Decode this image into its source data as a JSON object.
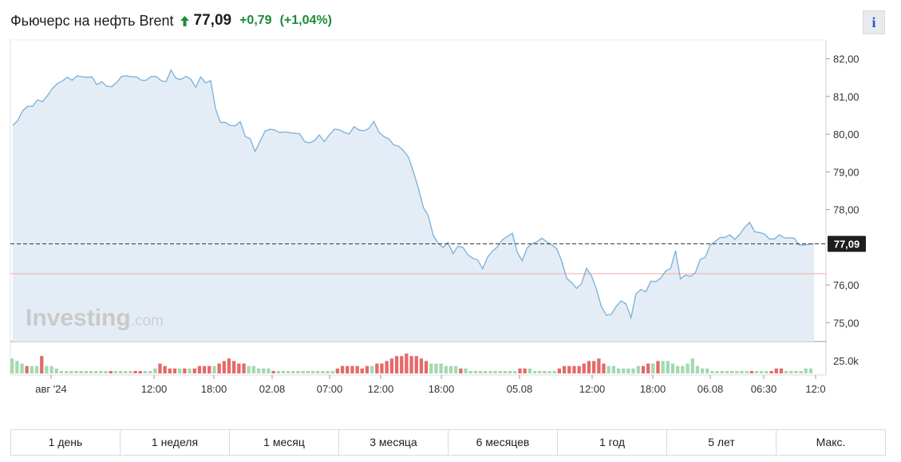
{
  "header": {
    "title": "Фьючерс на нефть Brent",
    "price": "77,09",
    "change": "+0,79",
    "change_pct": "(+1,04%)",
    "up_color": "#198c36",
    "direction_icon": "arrow-up-icon"
  },
  "info_button": {
    "label": "i"
  },
  "chart_data": {
    "type": "area",
    "watermark": {
      "brand": "Investing",
      "suffix": ".com"
    },
    "y_ticks": [
      "82,00",
      "81,00",
      "80,00",
      "79,00",
      "78,00",
      "76,00",
      "75,00"
    ],
    "ylim": [
      74.5,
      82.5
    ],
    "current_price": 77.09,
    "current_label": "77,09",
    "reference_line": 76.3,
    "x_ticks": [
      "авг '24",
      "12:00",
      "18:00",
      "02.08",
      "07:00",
      "12:00",
      "18:00",
      "05.08",
      "12:00",
      "18:00",
      "06.08",
      "06:30",
      "12:0"
    ],
    "grid": true,
    "series": [
      {
        "values": [
          80.23,
          80.36,
          80.62,
          80.74,
          80.74,
          80.91,
          80.86,
          81.02,
          81.21,
          81.34,
          81.41,
          81.51,
          81.43,
          81.55,
          81.52,
          81.51,
          81.52,
          81.31,
          81.39,
          81.27,
          81.26,
          81.37,
          81.53,
          81.55,
          81.52,
          81.52,
          81.43,
          81.43,
          81.53,
          81.53,
          81.42,
          81.39,
          81.7,
          81.48,
          81.45,
          81.53,
          81.46,
          81.24,
          81.52,
          81.36,
          81.42,
          80.67,
          80.31,
          80.31,
          80.23,
          80.22,
          80.33,
          79.94,
          79.88,
          79.54,
          79.81,
          80.08,
          80.13,
          80.11,
          80.04,
          80.06,
          80.04,
          80.02,
          80.01,
          79.8,
          79.77,
          79.83,
          79.98,
          79.8,
          79.98,
          80.13,
          80.12,
          80.05,
          80.0,
          80.2,
          80.11,
          80.09,
          80.15,
          80.34,
          80.06,
          79.94,
          79.88,
          79.72,
          79.68,
          79.56,
          79.39,
          79.0,
          78.57,
          78.06,
          77.84,
          77.32,
          77.11,
          76.99,
          77.13,
          76.83,
          77.03,
          77.0,
          76.8,
          76.71,
          76.66,
          76.43,
          76.74,
          76.9,
          77.01,
          77.2,
          77.29,
          77.37,
          76.87,
          76.64,
          76.98,
          77.1,
          77.15,
          77.24,
          77.14,
          77.06,
          76.96,
          76.63,
          76.18,
          76.06,
          75.91,
          76.04,
          76.44,
          76.25,
          75.89,
          75.43,
          75.2,
          75.22,
          75.43,
          75.58,
          75.5,
          75.13,
          75.77,
          75.88,
          75.82,
          76.1,
          76.09,
          76.18,
          76.37,
          76.43,
          76.91,
          76.16,
          76.26,
          76.23,
          76.32,
          76.68,
          76.73,
          77.06,
          77.15,
          77.26,
          77.26,
          77.33,
          77.21,
          77.34,
          77.53,
          77.66,
          77.41,
          77.39,
          77.35,
          77.22,
          77.22,
          77.33,
          77.25,
          77.25,
          77.24,
          77.06,
          77.06,
          77.08,
          77.09
        ]
      }
    ],
    "volume": {
      "axis_label": "25.0k",
      "values": [
        6,
        5,
        4,
        3,
        3,
        3,
        7,
        3,
        3,
        2,
        1,
        1,
        1,
        1,
        1,
        1,
        1,
        1,
        1,
        1,
        1,
        1,
        1,
        1,
        1,
        1,
        1,
        1,
        1,
        2,
        4,
        3,
        2,
        2,
        2,
        2,
        2,
        2,
        3,
        3,
        3,
        3,
        4,
        5,
        6,
        5,
        4,
        4,
        3,
        3,
        2,
        2,
        2,
        1,
        1,
        1,
        1,
        1,
        1,
        1,
        1,
        1,
        1,
        1,
        1,
        1,
        2,
        3,
        3,
        3,
        3,
        2,
        3,
        3,
        4,
        4,
        5,
        6,
        7,
        7,
        8,
        7,
        7,
        6,
        5,
        4,
        4,
        4,
        3,
        3,
        3,
        2,
        2,
        1,
        1,
        1,
        1,
        1,
        1,
        1,
        1,
        1,
        1,
        2,
        2,
        2,
        1,
        1,
        1,
        1,
        1,
        2,
        3,
        3,
        3,
        3,
        4,
        5,
        5,
        6,
        4,
        3,
        3,
        2,
        2,
        2,
        2,
        3,
        3,
        4,
        4,
        5,
        5,
        5,
        4,
        3,
        3,
        4,
        6,
        3,
        2,
        2,
        1,
        1,
        1,
        1,
        1,
        1,
        1,
        1,
        1,
        1,
        1,
        1,
        1,
        2,
        2,
        1,
        1,
        1,
        1,
        2,
        2
      ],
      "directions": [
        "u",
        "u",
        "u",
        "d",
        "u",
        "u",
        "d",
        "u",
        "u",
        "u",
        "u",
        "u",
        "u",
        "u",
        "u",
        "u",
        "u",
        "u",
        "u",
        "u",
        "d",
        "u",
        "u",
        "u",
        "u",
        "d",
        "d",
        "u",
        "u",
        "u",
        "d",
        "d",
        "d",
        "d",
        "u",
        "d",
        "u",
        "d",
        "d",
        "d",
        "d",
        "u",
        "d",
        "d",
        "d",
        "d",
        "d",
        "d",
        "u",
        "u",
        "u",
        "u",
        "u",
        "d",
        "u",
        "u",
        "u",
        "u",
        "u",
        "u",
        "u",
        "u",
        "u",
        "u",
        "u",
        "u",
        "d",
        "d",
        "d",
        "d",
        "d",
        "d",
        "d",
        "u",
        "d",
        "d",
        "d",
        "d",
        "d",
        "d",
        "d",
        "d",
        "d",
        "d",
        "d",
        "u",
        "u",
        "u",
        "u",
        "u",
        "u",
        "d",
        "u",
        "u",
        "u",
        "u",
        "u",
        "u",
        "u",
        "u",
        "u",
        "u",
        "u",
        "d",
        "d",
        "u",
        "u",
        "u",
        "u",
        "u",
        "u",
        "d",
        "d",
        "d",
        "d",
        "d",
        "d",
        "d",
        "d",
        "d",
        "d",
        "u",
        "u",
        "u",
        "u",
        "u",
        "u",
        "u",
        "d",
        "d",
        "u",
        "d",
        "u",
        "u",
        "u",
        "u",
        "u",
        "u",
        "u",
        "u",
        "u",
        "u",
        "u",
        "u",
        "u",
        "u",
        "u",
        "u",
        "u",
        "u",
        "d",
        "u",
        "u",
        "u",
        "d",
        "d",
        "d",
        "u",
        "u",
        "u",
        "u",
        "u"
      ],
      "up_color": "#a3d9b1",
      "down_color": "#e46a6a"
    }
  },
  "ranges": [
    "1 день",
    "1 неделя",
    "1 месяц",
    "3 месяца",
    "6 месяцев",
    "1 год",
    "5 лет",
    "Макс."
  ]
}
